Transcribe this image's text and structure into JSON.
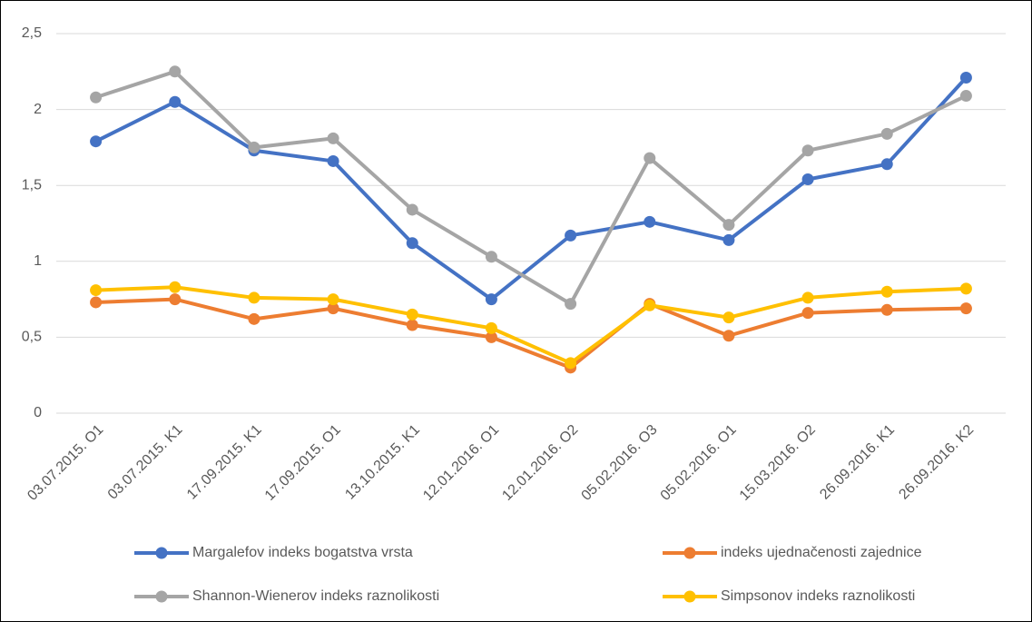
{
  "chart_data": {
    "type": "line",
    "categories": [
      "03.07.2015. O1",
      "03.07.2015. K1",
      "17.09.2015. K1",
      "17.09.2015. O1",
      "13.10.2015. K1",
      "12.01.2016. O1",
      "12.01.2016. O2",
      "05.02.2016. O3",
      "05.02.2016. O1",
      "15.03.2016. O2",
      "26.09.2016. K1",
      "26.09.2016. K2"
    ],
    "series": [
      {
        "name": "Margalefov indeks bogatstva vrsta",
        "color": "#4472c4",
        "values": [
          1.79,
          2.05,
          1.73,
          1.66,
          1.12,
          0.75,
          1.17,
          1.26,
          1.14,
          1.54,
          1.64,
          2.21
        ]
      },
      {
        "name": "indeks ujednačenosti zajednice",
        "color": "#ed7d31",
        "values": [
          0.73,
          0.75,
          0.62,
          0.69,
          0.58,
          0.5,
          0.3,
          0.72,
          0.51,
          0.66,
          0.68,
          0.69
        ]
      },
      {
        "name": "Shannon-Wienerov indeks raznolikosti",
        "color": "#a5a5a5",
        "values": [
          2.08,
          2.25,
          1.75,
          1.81,
          1.34,
          1.03,
          0.72,
          1.68,
          1.24,
          1.73,
          1.84,
          2.09
        ]
      },
      {
        "name": "Simpsonov indeks raznolikosti",
        "color": "#ffc000",
        "values": [
          0.81,
          0.83,
          0.76,
          0.75,
          0.65,
          0.56,
          0.33,
          0.71,
          0.63,
          0.76,
          0.8,
          0.82
        ]
      }
    ],
    "ylim": [
      0,
      2.5
    ],
    "yticks": [
      0,
      {
        "value": 0.5,
        "label": "0,5"
      },
      1,
      {
        "value": 1.5,
        "label": "1,5"
      },
      2,
      {
        "value": 2.5,
        "label": "2,5"
      }
    ],
    "grid": true
  }
}
